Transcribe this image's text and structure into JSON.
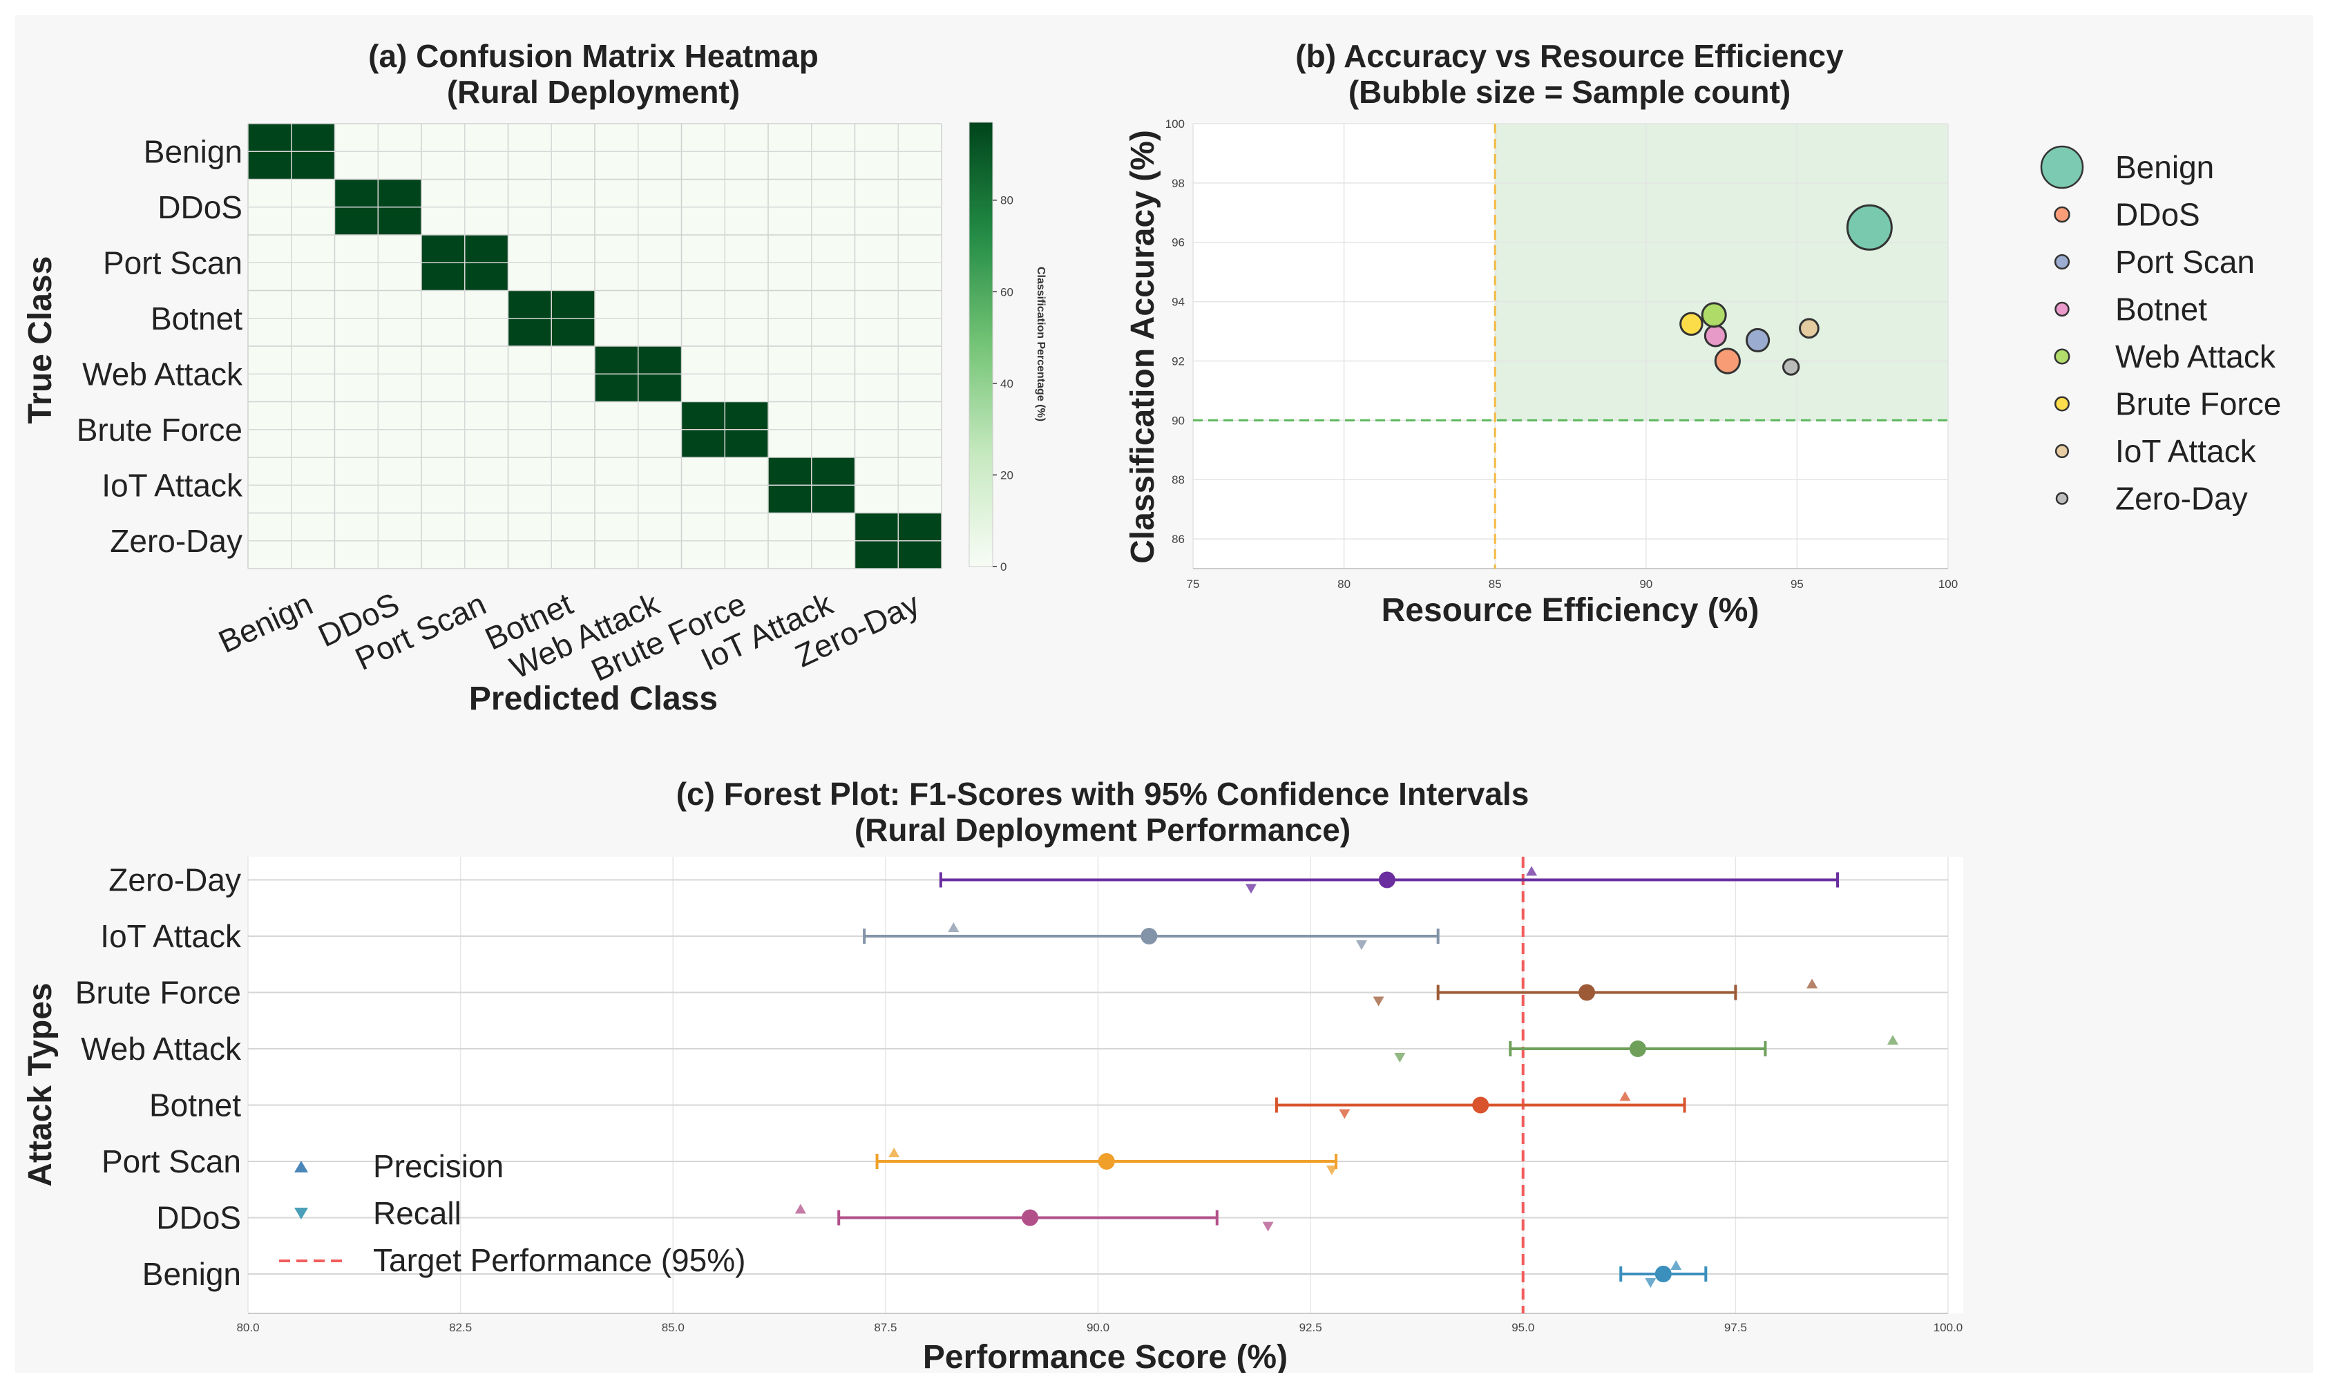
{
  "chart_data": [
    {
      "type": "heatmap",
      "title": "(a) Confusion Matrix Heatmap",
      "subtitle": "(Rural Deployment)",
      "xlabel": "Predicted Class",
      "ylabel": "True Class",
      "rows": [
        "Benign",
        "DDoS",
        "Port Scan",
        "Botnet",
        "Web Attack",
        "Brute Force",
        "IoT Attack",
        "Zero-Day"
      ],
      "cols": [
        "Benign",
        "DDoS",
        "Port Scan",
        "Botnet",
        "Web Attack",
        "Brute Force",
        "IoT Attack",
        "Zero-Day"
      ],
      "diagonal_value": 97,
      "offdiagonal_value": 0.5,
      "colorbar": {
        "label": "Classification Percentage (%)",
        "ticks": [
          "0",
          "20",
          "40",
          "60",
          "80"
        ],
        "range": [
          0,
          97
        ]
      }
    },
    {
      "type": "scatter",
      "title": "(b) Accuracy vs Resource Efficiency",
      "subtitle": "(Bubble size = Sample count)",
      "xlabel": "Resource Efficiency (%)",
      "ylabel": "Classification Accuracy (%)",
      "xlim": [
        75,
        100
      ],
      "ylim": [
        85,
        100
      ],
      "xticks": [
        "75",
        "80",
        "85",
        "90",
        "95",
        "100"
      ],
      "yticks": [
        "86",
        "88",
        "90",
        "92",
        "94",
        "96",
        "98",
        "100"
      ],
      "threshold_x": 85,
      "threshold_y": 90,
      "points": [
        {
          "name": "Benign",
          "x": 97.4,
          "y": 96.5,
          "size": 1.0,
          "color": "#66c2a5"
        },
        {
          "name": "DDoS",
          "x": 92.7,
          "y": 92.0,
          "size": 0.2,
          "color": "#fc8d62"
        },
        {
          "name": "Port Scan",
          "x": 93.7,
          "y": 92.7,
          "size": 0.15,
          "color": "#8da0cb"
        },
        {
          "name": "Botnet",
          "x": 92.3,
          "y": 92.85,
          "size": 0.12,
          "color": "#e78ac3"
        },
        {
          "name": "Web Attack",
          "x": 92.25,
          "y": 93.55,
          "size": 0.18,
          "color": "#a6d854"
        },
        {
          "name": "Brute Force",
          "x": 91.5,
          "y": 93.25,
          "size": 0.14,
          "color": "#ffd92f"
        },
        {
          "name": "IoT Attack",
          "x": 95.4,
          "y": 93.1,
          "size": 0.08,
          "color": "#e5c494"
        },
        {
          "name": "Zero-Day",
          "x": 94.8,
          "y": 91.8,
          "size": 0.04,
          "color": "#b3b3b3"
        }
      ]
    },
    {
      "type": "forest",
      "title": "(c) Forest Plot: F1-Scores with 95% Confidence Intervals",
      "subtitle": "(Rural Deployment Performance)",
      "xlabel": "Performance Score (%)",
      "ylabel": "Attack Types",
      "xlim": [
        80,
        100
      ],
      "xticks": [
        "80.0",
        "82.5",
        "85.0",
        "87.5",
        "90.0",
        "92.5",
        "95.0",
        "97.5",
        "100.0"
      ],
      "target": 95,
      "legend": {
        "precision": "Precision",
        "recall": "Recall",
        "target": "Target Performance (95%)"
      },
      "series": [
        {
          "name": "Benign",
          "f1": 96.65,
          "lo": 96.15,
          "hi": 97.15,
          "precision": 96.8,
          "recall": 96.5,
          "color": "#3a8fbd"
        },
        {
          "name": "DDoS",
          "f1": 89.2,
          "lo": 86.95,
          "hi": 91.4,
          "precision": 86.5,
          "recall": 92.0,
          "color": "#b2508a"
        },
        {
          "name": "Port Scan",
          "f1": 90.1,
          "lo": 87.4,
          "hi": 92.8,
          "precision": 87.6,
          "recall": 92.75,
          "color": "#f0a02a"
        },
        {
          "name": "Botnet",
          "f1": 94.5,
          "lo": 92.1,
          "hi": 96.9,
          "precision": 96.2,
          "recall": 92.9,
          "color": "#d9542c"
        },
        {
          "name": "Web Attack",
          "f1": 96.35,
          "lo": 94.85,
          "hi": 97.85,
          "precision": 99.35,
          "recall": 93.55,
          "color": "#6ea05a"
        },
        {
          "name": "Brute Force",
          "f1": 95.75,
          "lo": 94.0,
          "hi": 97.5,
          "precision": 98.4,
          "recall": 93.3,
          "color": "#9c5a36"
        },
        {
          "name": "IoT Attack",
          "f1": 90.6,
          "lo": 87.25,
          "hi": 94.0,
          "precision": 88.3,
          "recall": 93.1,
          "color": "#8494a8"
        },
        {
          "name": "Zero-Day",
          "f1": 93.4,
          "lo": 88.15,
          "hi": 98.7,
          "precision": 95.1,
          "recall": 91.8,
          "color": "#6a2e9f"
        }
      ]
    }
  ]
}
